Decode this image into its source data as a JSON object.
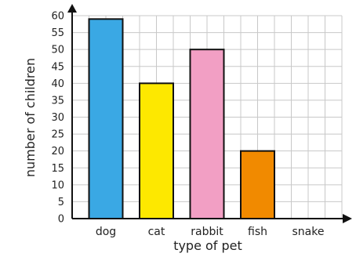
{
  "chart_data": {
    "type": "bar",
    "categories": [
      "dog",
      "cat",
      "rabbit",
      "fish",
      "snake"
    ],
    "values": [
      59,
      40,
      50,
      20,
      0
    ],
    "colors": [
      "#3aa8e4",
      "#fde800",
      "#f29fc4",
      "#f18a00",
      "#ffffff"
    ],
    "title": "",
    "xlabel": "type of pet",
    "ylabel": "number of children",
    "ylim": [
      0,
      60
    ],
    "yticks": [
      0,
      5,
      10,
      15,
      20,
      25,
      30,
      35,
      40,
      45,
      50,
      55,
      60
    ],
    "grid": true,
    "grid_color": "#c8c8c8",
    "bar_outline_color": "#111111"
  }
}
